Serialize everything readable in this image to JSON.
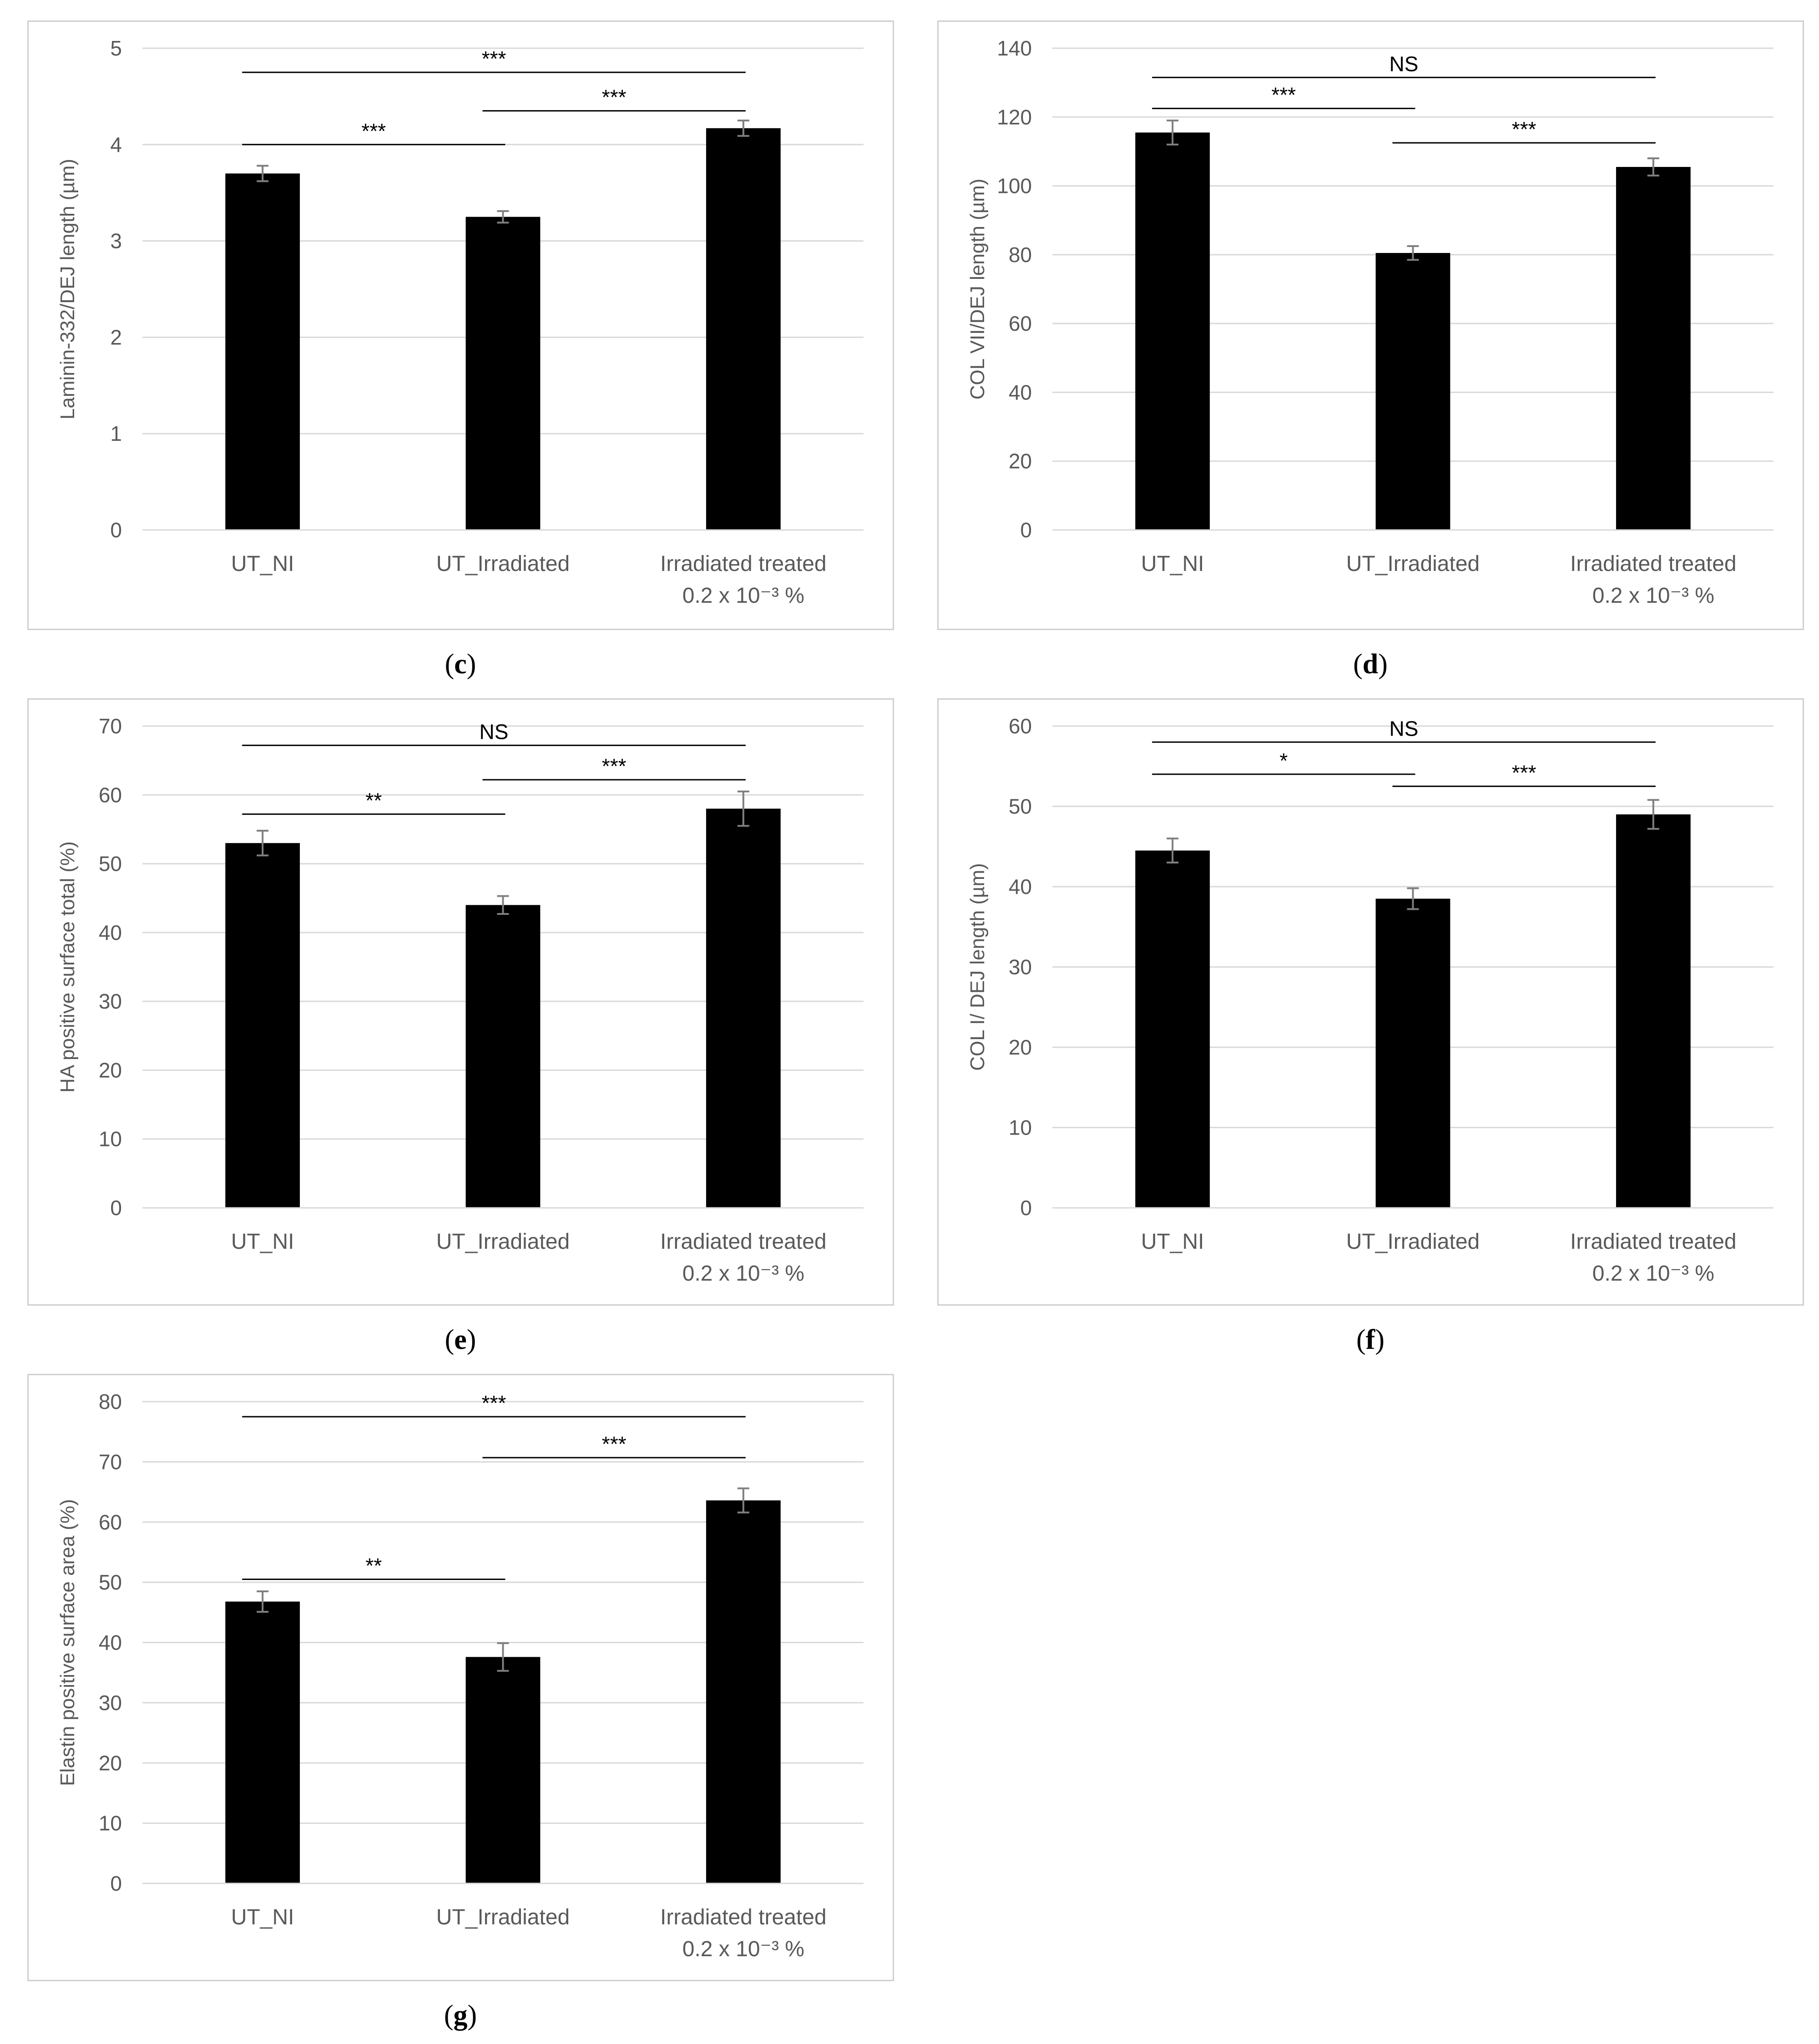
{
  "chart_data": [
    {
      "panel": "c",
      "type": "bar",
      "categories": [
        "UT_NI",
        "UT_Irradiated",
        "Irradiated treated"
      ],
      "category_sublabels": [
        "",
        "",
        "0.2 x 10⁻³ %"
      ],
      "values": [
        3.7,
        3.25,
        4.17
      ],
      "errors": [
        0.08,
        0.06,
        0.08
      ],
      "ylabel": "Laminin-332/DEJ length (µm)",
      "ylim": [
        0,
        5
      ],
      "yticks": [
        0,
        1,
        2,
        3,
        4,
        5
      ],
      "grid": true,
      "bar_color": "#000000",
      "significance": [
        {
          "from": 0,
          "to": 2,
          "level": 4.75,
          "label": "***"
        },
        {
          "from": 1,
          "to": 2,
          "level": 4.35,
          "label": "***"
        },
        {
          "from": 0,
          "to": 1,
          "level": 4.0,
          "label": "***"
        }
      ]
    },
    {
      "panel": "d",
      "type": "bar",
      "categories": [
        "UT_NI",
        "UT_Irradiated",
        "Irradiated treated"
      ],
      "category_sublabels": [
        "",
        "",
        "0.2 x 10⁻³ %"
      ],
      "values": [
        115.5,
        80.5,
        105.5
      ],
      "errors": [
        3.5,
        2.0,
        2.5
      ],
      "ylabel": "COL VII/DEJ length (µm)",
      "ylim": [
        0,
        140
      ],
      "yticks": [
        0,
        20,
        40,
        60,
        80,
        100,
        120,
        140
      ],
      "grid": true,
      "bar_color": "#000000",
      "significance": [
        {
          "from": 0,
          "to": 2,
          "level": 131.5,
          "label": "NS"
        },
        {
          "from": 0,
          "to": 1,
          "level": 122.5,
          "label": "***"
        },
        {
          "from": 1,
          "to": 2,
          "level": 112.5,
          "label": "***"
        }
      ]
    },
    {
      "panel": "e",
      "type": "bar",
      "categories": [
        "UT_NI",
        "UT_Irradiated",
        "Irradiated treated"
      ],
      "category_sublabels": [
        "",
        "",
        "0.2 x 10⁻³ %"
      ],
      "values": [
        53,
        44,
        58
      ],
      "errors": [
        1.8,
        1.3,
        2.5
      ],
      "ylabel": "HA positive surface total (%)",
      "ylim": [
        0,
        70
      ],
      "yticks": [
        0,
        10,
        20,
        30,
        40,
        50,
        60,
        70
      ],
      "grid": true,
      "bar_color": "#000000",
      "significance": [
        {
          "from": 0,
          "to": 2,
          "level": 67.2,
          "label": "NS"
        },
        {
          "from": 1,
          "to": 2,
          "level": 62.2,
          "label": "***"
        },
        {
          "from": 0,
          "to": 1,
          "level": 57.2,
          "label": "**"
        }
      ]
    },
    {
      "panel": "f",
      "type": "bar",
      "categories": [
        "UT_NI",
        "UT_Irradiated",
        "Irradiated treated"
      ],
      "category_sublabels": [
        "",
        "",
        "0.2 x 10⁻³ %"
      ],
      "values": [
        44.5,
        38.5,
        49
      ],
      "errors": [
        1.5,
        1.3,
        1.8
      ],
      "ylabel": "COL I/ DEJ length (µm)",
      "ylim": [
        0,
        60
      ],
      "yticks": [
        0,
        10,
        20,
        30,
        40,
        50,
        60
      ],
      "grid": true,
      "bar_color": "#000000",
      "significance": [
        {
          "from": 0,
          "to": 2,
          "level": 58,
          "label": "NS"
        },
        {
          "from": 0,
          "to": 1,
          "level": 54,
          "label": "*"
        },
        {
          "from": 1,
          "to": 2,
          "level": 52.5,
          "label": "***"
        }
      ]
    },
    {
      "panel": "g",
      "type": "bar",
      "categories": [
        "UT_NI",
        "UT_Irradiated",
        "Irradiated treated"
      ],
      "category_sublabels": [
        "",
        "",
        "0.2 x 10⁻³ %"
      ],
      "values": [
        46.8,
        37.6,
        63.6
      ],
      "errors": [
        1.7,
        2.3,
        2.0
      ],
      "ylabel": "Elastin positive surface area (%)",
      "ylim": [
        0,
        80
      ],
      "yticks": [
        0,
        10,
        20,
        30,
        40,
        50,
        60,
        70,
        80
      ],
      "grid": true,
      "bar_color": "#000000",
      "significance": [
        {
          "from": 0,
          "to": 2,
          "level": 77.5,
          "label": "***"
        },
        {
          "from": 1,
          "to": 2,
          "level": 70.7,
          "label": "***"
        },
        {
          "from": 0,
          "to": 1,
          "level": 50.5,
          "label": "**"
        }
      ]
    }
  ],
  "captions": {
    "c": "c",
    "d": "d",
    "e": "e",
    "f": "f",
    "g": "g"
  }
}
